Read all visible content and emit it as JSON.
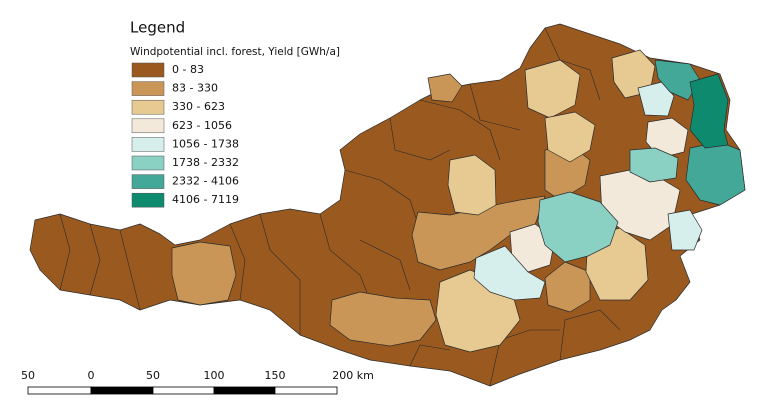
{
  "legend": {
    "title": "Legend",
    "subtitle": "Windpotential incl. forest, Yield [GWh/a]",
    "entries": [
      {
        "label": "0 - 83",
        "color": "#9a5a1f"
      },
      {
        "label": "83 - 330",
        "color": "#c99657"
      },
      {
        "label": "330 - 623",
        "color": "#e6ca92"
      },
      {
        "label": "623 - 1056",
        "color": "#f2e9da"
      },
      {
        "label": "1056 - 1738",
        "color": "#d6eeec"
      },
      {
        "label": "1738 - 2332",
        "color": "#8ad0c3"
      },
      {
        "label": "2332 - 4106",
        "color": "#43a898"
      },
      {
        "label": "4106 - 7119",
        "color": "#0e8a6f"
      }
    ]
  },
  "scale_bar": {
    "labels": [
      "50",
      "0",
      "50",
      "100",
      "150",
      "200 km"
    ]
  }
}
